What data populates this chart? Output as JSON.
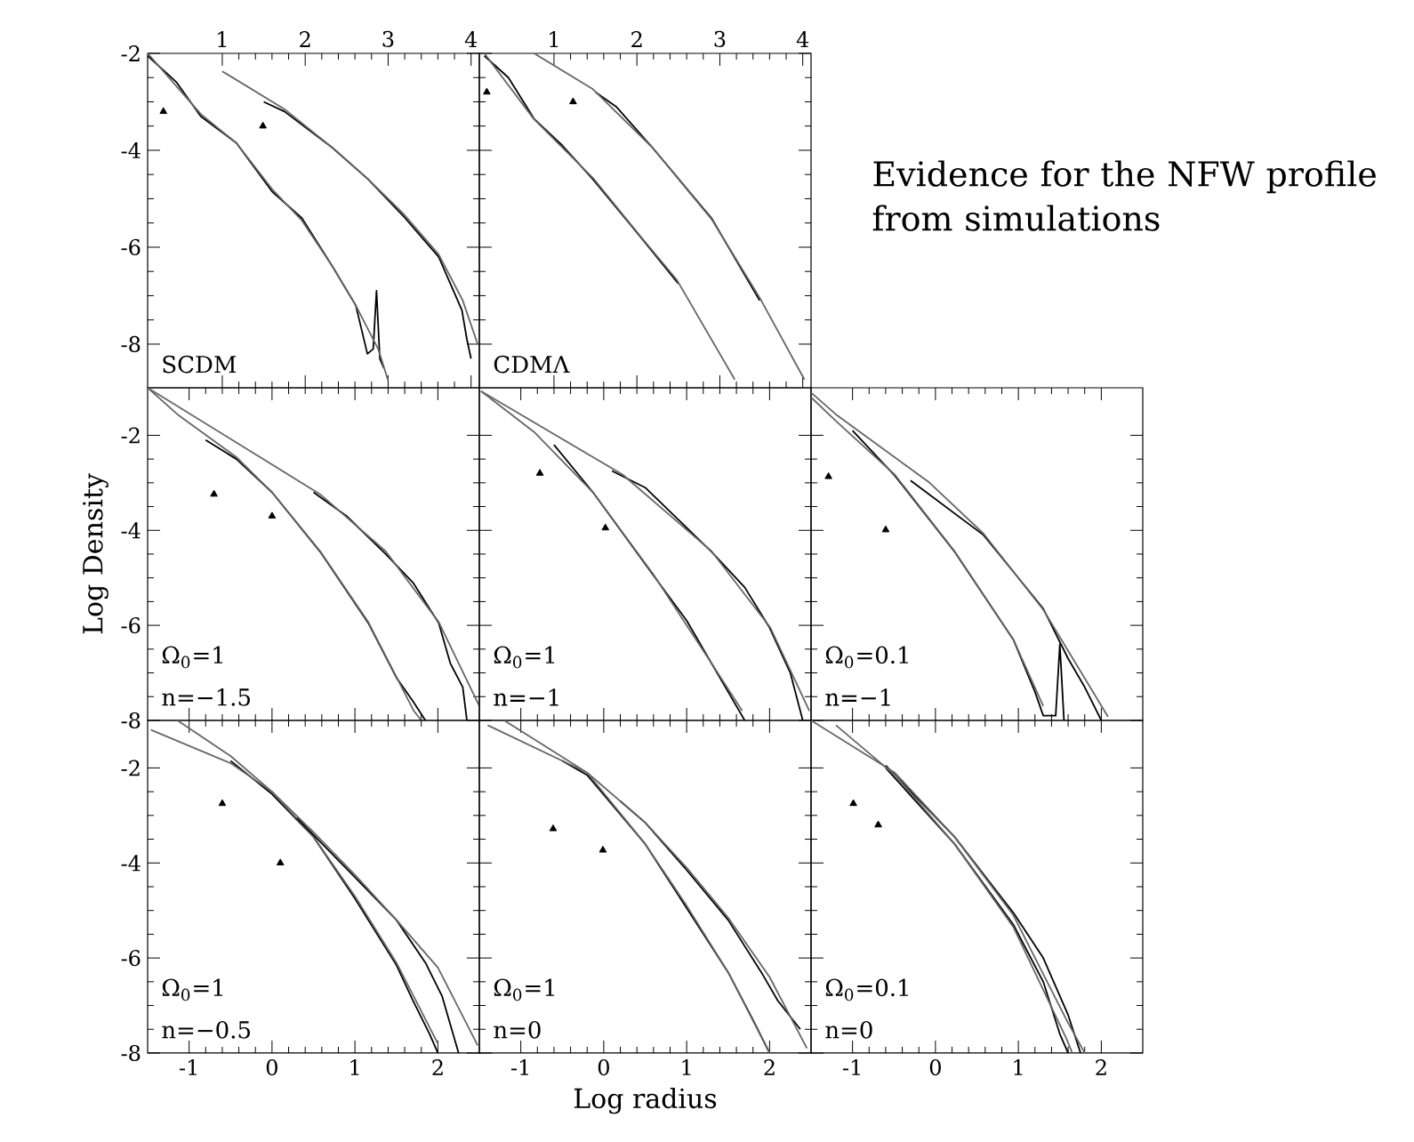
{
  "chart_data": [
    {
      "type": "line",
      "xlim": [
        0.1,
        4.1
      ],
      "xticks": [
        1,
        2,
        3,
        4
      ],
      "ylim": [
        -8.9,
        -2
      ],
      "yticks": [
        -8,
        -6,
        -4,
        -2
      ],
      "series": [
        {
          "color": "#000000",
          "x": [
            0.1,
            0.45,
            0.74,
            1.17,
            1.6,
            1.96,
            2.33,
            2.61,
            2.75,
            2.82,
            2.86,
            2.9,
            2.95
          ],
          "values": [
            -2.05,
            -2.6,
            -3.3,
            -3.85,
            -4.85,
            -5.4,
            -6.4,
            -7.2,
            -8.2,
            -8.1,
            -6.9,
            -8.3,
            -8.5
          ]
        },
        {
          "color": "#666666",
          "x": [
            0.1,
            0.74,
            1.17,
            1.6,
            1.96,
            2.33,
            2.61,
            2.88,
            3.0
          ],
          "values": [
            -2.0,
            -3.25,
            -3.85,
            -4.8,
            -5.45,
            -6.4,
            -7.2,
            -8.1,
            -8.75
          ]
        },
        {
          "color": "#000000",
          "x": [
            1.5,
            1.75,
            2.33,
            2.76,
            3.18,
            3.61,
            3.89,
            3.95,
            4.0
          ],
          "values": [
            -3.0,
            -3.2,
            -3.95,
            -4.6,
            -5.35,
            -6.2,
            -7.3,
            -7.9,
            -8.3
          ]
        },
        {
          "color": "#666666",
          "x": [
            1.0,
            1.75,
            2.33,
            2.76,
            3.18,
            3.61,
            3.9,
            4.08
          ],
          "values": [
            -2.37,
            -3.15,
            -3.95,
            -4.6,
            -5.3,
            -6.15,
            -7.1,
            -8.0
          ]
        },
        {
          "type": "scatter",
          "marker": "triangle",
          "color": "#000000",
          "x": [
            0.29,
            1.49
          ],
          "values": [
            -3.2,
            -3.5
          ]
        }
      ],
      "annotations": [
        "SCDM"
      ]
    },
    {
      "type": "line",
      "xlim": [
        0.1,
        4.1
      ],
      "xticks": [
        1,
        2,
        3,
        4
      ],
      "ylim": [
        -8.9,
        -2
      ],
      "yticks": [
        -8,
        -6,
        -4,
        -2
      ],
      "tick_labels": "x",
      "series": [
        {
          "color": "#000000",
          "x": [
            0.16,
            0.45,
            0.76,
            1.1,
            1.47,
            2.05,
            2.5
          ],
          "values": [
            -2.05,
            -2.5,
            -3.35,
            -3.9,
            -4.6,
            -5.8,
            -6.75
          ]
        },
        {
          "color": "#666666",
          "x": [
            0.16,
            0.76,
            1.47,
            2.05,
            2.48,
            3.18
          ],
          "values": [
            -2.0,
            -3.36,
            -4.57,
            -5.79,
            -6.67,
            -8.73
          ]
        },
        {
          "color": "#000000",
          "x": [
            1.5,
            1.75,
            2.19,
            2.9,
            3.48
          ],
          "values": [
            -2.8,
            -3.1,
            -3.95,
            -5.4,
            -7.1
          ]
        },
        {
          "color": "#666666",
          "x": [
            0.76,
            1.47,
            2.19,
            2.9,
            3.48,
            4.02
          ],
          "values": [
            -2.0,
            -2.74,
            -3.95,
            -5.42,
            -7.04,
            -8.73
          ]
        },
        {
          "type": "scatter",
          "marker": "triangle",
          "color": "#000000",
          "x": [
            0.19,
            1.23
          ],
          "values": [
            -2.8,
            -3.0
          ]
        }
      ],
      "annotations": [
        "CDMΛ"
      ]
    },
    {
      "type": "other",
      "title": "Evidence for the NFW profile from simulations"
    },
    {
      "type": "line",
      "xlim": [
        -1.5,
        2.5
      ],
      "xticks": [
        -1,
        0,
        1,
        2
      ],
      "ylim": [
        -8,
        -1
      ],
      "yticks": [
        -8,
        -6,
        -4,
        -2
      ],
      "tick_labels": "y",
      "ylabel": "Log Density",
      "series": [
        {
          "color": "#000000",
          "x": [
            -0.8,
            -0.43,
            0.0,
            0.58,
            1.16,
            1.5,
            1.7,
            1.85
          ],
          "values": [
            -2.1,
            -2.5,
            -3.2,
            -4.45,
            -5.95,
            -7.1,
            -7.6,
            -8.0
          ]
        },
        {
          "color": "#666666",
          "x": [
            -1.5,
            -1.14,
            -0.43,
            0.0,
            0.58,
            1.16,
            1.71,
            1.8
          ],
          "values": [
            -1.0,
            -1.56,
            -2.46,
            -3.2,
            -4.44,
            -5.93,
            -7.8,
            -8.0
          ]
        },
        {
          "color": "#000000",
          "x": [
            0.5,
            0.9,
            1.37,
            1.7,
            2.01,
            2.15,
            2.3,
            2.35
          ],
          "values": [
            -3.2,
            -3.7,
            -4.5,
            -5.1,
            -5.95,
            -6.8,
            -7.3,
            -8.0
          ]
        },
        {
          "color": "#666666",
          "x": [
            -1.5,
            0.58,
            1.37,
            2.01,
            2.5
          ],
          "values": [
            -1.0,
            -3.24,
            -4.44,
            -5.93,
            -7.7
          ]
        },
        {
          "type": "scatter",
          "marker": "triangle",
          "color": "#000000",
          "x": [
            -0.7,
            0.0
          ],
          "values": [
            -3.24,
            -3.7
          ]
        }
      ],
      "annotations": [
        "Ω$_{0}$=1",
        "n=−1.5"
      ]
    },
    {
      "type": "line",
      "xlim": [
        -1.5,
        2.5
      ],
      "xticks": [
        -1,
        0,
        1,
        2
      ],
      "ylim": [
        -8,
        -1
      ],
      "yticks": [
        -8,
        -6,
        -4,
        -2
      ],
      "tick_labels": false,
      "series": [
        {
          "color": "#000000",
          "x": [
            -0.6,
            -0.13,
            0.6,
            1.0,
            1.3,
            1.5,
            1.7
          ],
          "values": [
            -2.2,
            -3.2,
            -4.95,
            -5.9,
            -6.8,
            -7.4,
            -8.0
          ]
        },
        {
          "color": "#666666",
          "x": [
            -1.48,
            -0.84,
            -0.13,
            0.6,
            1.3,
            1.67
          ],
          "values": [
            -1.07,
            -1.93,
            -3.2,
            -4.93,
            -6.8,
            -7.8
          ]
        },
        {
          "color": "#000000",
          "x": [
            0.1,
            0.5,
            1.3,
            1.7,
            2.0,
            2.25,
            2.4
          ],
          "values": [
            -2.75,
            -3.1,
            -4.45,
            -5.2,
            -6.05,
            -7.0,
            -8.0
          ]
        },
        {
          "color": "#666666",
          "x": [
            -1.48,
            0.23,
            1.3,
            2.01,
            2.48
          ],
          "values": [
            -1.07,
            -2.83,
            -4.44,
            -6.05,
            -7.8
          ]
        },
        {
          "type": "scatter",
          "marker": "triangle",
          "color": "#000000",
          "x": [
            -0.77,
            0.02
          ],
          "values": [
            -2.8,
            -3.95
          ]
        }
      ],
      "annotations": [
        "Ω$_{0}$=1",
        "n=−1"
      ]
    },
    {
      "type": "line",
      "xlim": [
        -1.5,
        2.5
      ],
      "xticks": [
        -1,
        0,
        1,
        2
      ],
      "ylim": [
        -8,
        -1
      ],
      "yticks": [
        -8,
        -6,
        -4,
        -2
      ],
      "tick_labels": false,
      "series": [
        {
          "color": "#000000",
          "x": [
            -1.0,
            -0.49,
            0.23,
            0.94,
            1.2,
            1.3,
            1.45,
            1.5,
            1.55
          ],
          "values": [
            -1.9,
            -2.85,
            -4.45,
            -6.3,
            -7.4,
            -7.9,
            -7.9,
            -6.4,
            -8.0
          ]
        },
        {
          "color": "#666666",
          "x": [
            -1.5,
            -1.2,
            -0.49,
            0.23,
            0.94,
            1.3
          ],
          "values": [
            -1.2,
            -1.7,
            -2.83,
            -4.44,
            -6.3,
            -7.7
          ]
        },
        {
          "color": "#000000",
          "x": [
            -0.3,
            0.58,
            1.0,
            1.3,
            1.6,
            1.8,
            2.0
          ],
          "values": [
            -2.95,
            -4.1,
            -5.0,
            -5.65,
            -6.7,
            -7.3,
            -8.0
          ]
        },
        {
          "color": "#666666",
          "x": [
            -1.5,
            -1.2,
            -0.07,
            0.58,
            1.3,
            2.08
          ],
          "values": [
            -1.1,
            -1.56,
            -3.0,
            -4.07,
            -5.67,
            -7.92
          ]
        },
        {
          "type": "scatter",
          "marker": "triangle",
          "color": "#000000",
          "x": [
            -1.29,
            -0.6
          ],
          "values": [
            -2.87,
            -3.99
          ]
        }
      ],
      "annotations": [
        "Ω$_{0}$=0.1",
        "n=−1"
      ]
    },
    {
      "type": "line",
      "xlim": [
        -1.5,
        2.5
      ],
      "xticks": [
        -1,
        0,
        1,
        2
      ],
      "ylim": [
        -8,
        -1
      ],
      "yticks": [
        -8,
        -6,
        -4,
        -2
      ],
      "series": [
        {
          "color": "#000000",
          "x": [
            -0.5,
            0.0,
            0.5,
            1.0,
            1.5,
            1.7,
            1.9,
            2.0
          ],
          "values": [
            -1.85,
            -2.55,
            -3.45,
            -4.75,
            -6.15,
            -6.9,
            -7.6,
            -8.0
          ]
        },
        {
          "color": "#666666",
          "x": [
            -1.46,
            -0.5,
            0.0,
            0.5,
            1.0,
            1.5,
            2.0
          ],
          "values": [
            -1.2,
            -1.9,
            -2.5,
            -3.45,
            -4.7,
            -6.1,
            -7.8
          ]
        },
        {
          "color": "#000000",
          "x": [
            0.3,
            1.0,
            1.5,
            1.85,
            2.05,
            2.15,
            2.25
          ],
          "values": [
            -3.05,
            -4.3,
            -5.2,
            -6.1,
            -6.8,
            -7.4,
            -8.0
          ]
        },
        {
          "color": "#666666",
          "x": [
            -1.14,
            -0.5,
            0.0,
            0.5,
            1.0,
            1.5,
            2.0,
            2.48
          ],
          "values": [
            -1.0,
            -1.75,
            -2.5,
            -3.35,
            -4.25,
            -5.2,
            -6.2,
            -7.84
          ]
        },
        {
          "type": "scatter",
          "marker": "triangle",
          "color": "#000000",
          "x": [
            -0.6,
            0.1
          ],
          "values": [
            -2.75,
            -4.0
          ]
        }
      ],
      "annotations": [
        "Ω$_{0}$=1",
        "n=−0.5"
      ]
    },
    {
      "type": "line",
      "xlim": [
        -1.5,
        2.5
      ],
      "xticks": [
        -1,
        0,
        1,
        2
      ],
      "ylim": [
        -8,
        -1
      ],
      "yticks": [
        -8,
        -6,
        -4,
        -2
      ],
      "tick_labels": "x",
      "xlabel": "Log radius",
      "series": [
        {
          "color": "#000000",
          "x": [
            -0.5,
            -0.2,
            0.5,
            1.0,
            1.5,
            1.8,
            2.0
          ],
          "values": [
            -1.85,
            -2.15,
            -3.6,
            -4.95,
            -6.3,
            -7.3,
            -8.0
          ]
        },
        {
          "color": "#666666",
          "x": [
            -1.4,
            -0.2,
            0.5,
            1.0,
            1.5,
            2.0
          ],
          "values": [
            -1.1,
            -2.1,
            -3.6,
            -4.9,
            -6.3,
            -8.0
          ]
        },
        {
          "color": "#000000",
          "x": [
            0.2,
            0.5,
            1.0,
            1.5,
            1.9,
            2.1,
            2.37
          ],
          "values": [
            -2.7,
            -3.15,
            -4.15,
            -5.2,
            -6.3,
            -6.9,
            -7.5
          ]
        },
        {
          "color": "#666666",
          "x": [
            -1.2,
            -0.2,
            0.5,
            1.0,
            1.5,
            2.0,
            2.45
          ],
          "values": [
            -1.0,
            -2.1,
            -3.15,
            -4.1,
            -5.15,
            -6.4,
            -7.9
          ]
        },
        {
          "type": "scatter",
          "marker": "triangle",
          "color": "#000000",
          "x": [
            -0.61,
            -0.01
          ],
          "values": [
            -3.28,
            -3.73
          ]
        }
      ],
      "annotations": [
        "Ω$_{0}$=1",
        "n=0"
      ]
    },
    {
      "type": "line",
      "xlim": [
        -1.5,
        2.5
      ],
      "xticks": [
        -1,
        0,
        1,
        2
      ],
      "ylim": [
        -8,
        -1
      ],
      "yticks": [
        -8,
        -6,
        -4,
        -2
      ],
      "tick_labels": "x",
      "series": [
        {
          "color": "#000000",
          "x": [
            -0.6,
            0.23,
            0.94,
            1.3,
            1.6,
            1.75
          ],
          "values": [
            -1.95,
            -3.45,
            -5.05,
            -6.0,
            -7.2,
            -8.0
          ]
        },
        {
          "color": "#666666",
          "x": [
            -1.5,
            -0.49,
            0.23,
            0.94,
            1.58,
            1.8
          ],
          "values": [
            -1.0,
            -2.1,
            -3.45,
            -5.1,
            -7.3,
            -8.0
          ]
        },
        {
          "color": "#000000",
          "x": [
            -0.6,
            0.23,
            0.94,
            1.3,
            1.5,
            1.6
          ],
          "values": [
            -2.0,
            -3.6,
            -5.3,
            -6.5,
            -7.6,
            -8.0
          ]
        },
        {
          "color": "#666666",
          "x": [
            -1.2,
            -0.49,
            0.23,
            0.94,
            1.58,
            1.65
          ],
          "values": [
            -1.1,
            -2.15,
            -3.6,
            -5.35,
            -7.7,
            -8.0
          ]
        },
        {
          "type": "scatter",
          "marker": "triangle",
          "color": "#000000",
          "x": [
            -0.99,
            -0.69
          ],
          "values": [
            -2.75,
            -3.2
          ]
        }
      ],
      "annotations": [
        "Ω$_{0}$=0.1",
        "n=0"
      ]
    }
  ]
}
